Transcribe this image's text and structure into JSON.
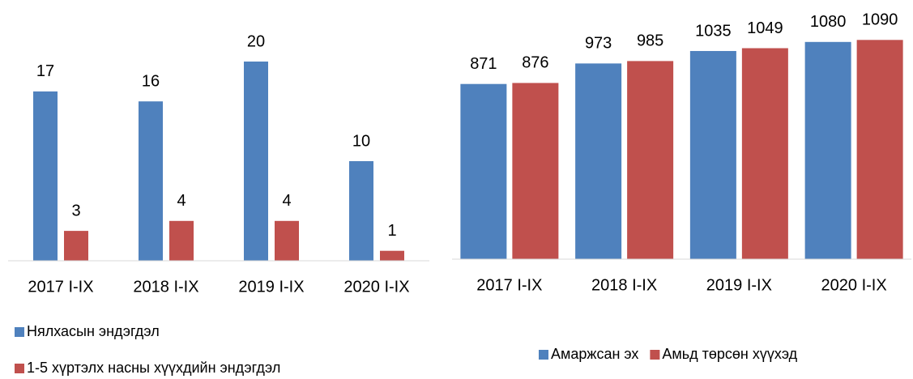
{
  "chart_data": [
    {
      "type": "bar",
      "categories": [
        "2017 I-IX",
        "2018 I-IX",
        "2019 I-IX",
        "2020 I-IX"
      ],
      "series": [
        {
          "name": "Нялхасын эндэгдэл",
          "color": "#4f81bd",
          "values": [
            17,
            16,
            20,
            10
          ]
        },
        {
          "name": "1-5 хүртэлх насны хүүхдийн эндэгдэл",
          "color": "#c0504d",
          "values": [
            3,
            4,
            4,
            1
          ]
        }
      ],
      "ylim": [
        0,
        22
      ],
      "legend": "bottom-left"
    },
    {
      "type": "bar",
      "categories": [
        "2017 I-IX",
        "2018 I-IX",
        "2019 I-IX",
        "2020 I-IX"
      ],
      "series": [
        {
          "name": "Амаржсан эх",
          "color": "#4f81bd",
          "values": [
            871,
            973,
            1035,
            1080
          ]
        },
        {
          "name": "Амьд төрсөн хүүхэд",
          "color": "#c0504d",
          "values": [
            876,
            985,
            1049,
            1090
          ]
        }
      ],
      "ylim": [
        0,
        1200
      ],
      "legend": "bottom-right"
    }
  ]
}
